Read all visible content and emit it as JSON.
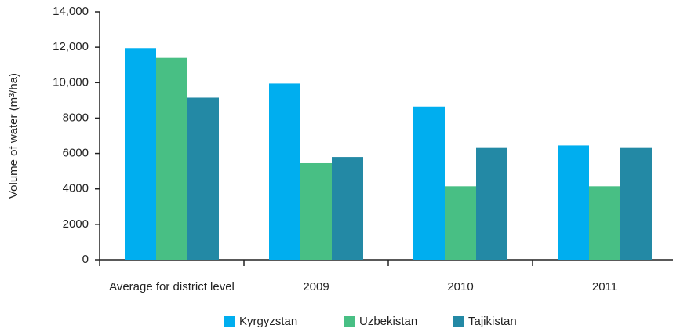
{
  "chart_data": {
    "type": "bar",
    "y_label": "Volume of water (m³/ha)",
    "categories": [
      "Average for district level",
      "2009",
      "2010",
      "2011"
    ],
    "series": [
      {
        "name": "Kyrgyzstan",
        "color": "#00aeef",
        "values": [
          11950,
          9950,
          8650,
          6450
        ]
      },
      {
        "name": "Uzbekistan",
        "color": "#48bf84",
        "values": [
          11400,
          5450,
          4150,
          4150
        ]
      },
      {
        "name": "Tajikistan",
        "color": "#2389a5",
        "values": [
          9150,
          5800,
          6350,
          6350
        ]
      }
    ],
    "ylim": [
      0,
      14000
    ],
    "yticks": [
      0,
      2000,
      4000,
      6000,
      8000,
      {
        "value": 10000,
        "label": "10,000"
      },
      {
        "value": 12000,
        "label": "12,000"
      },
      {
        "value": 14000,
        "label": "14,000"
      }
    ],
    "legend": "bottom"
  }
}
